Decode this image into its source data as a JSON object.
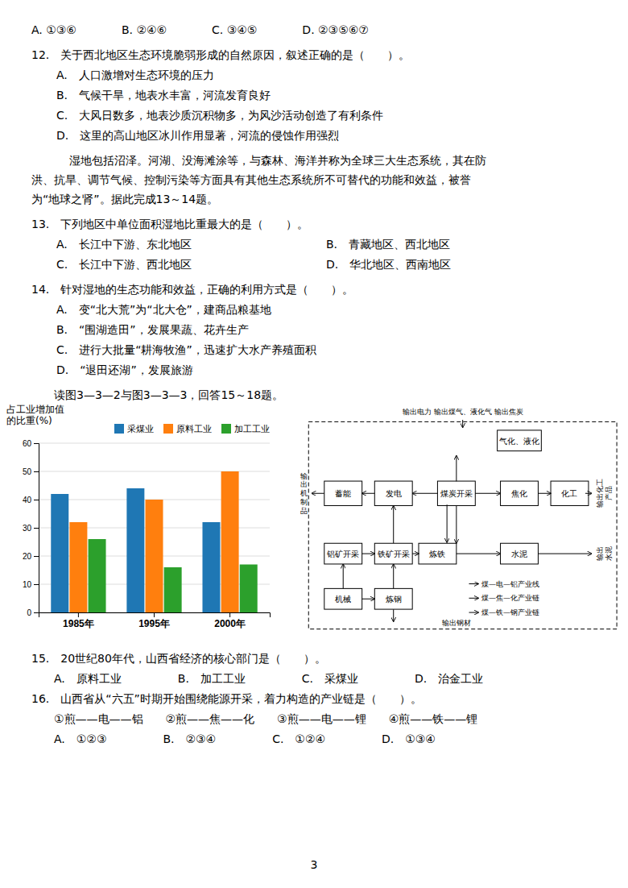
{
  "chart_data": {
    "type": "bar",
    "y_label": "占工业增加值\n的比重(%)",
    "categories": [
      "1985年",
      "1995年",
      "2000年"
    ],
    "series": [
      {
        "name": "采煤业",
        "values": [
          42,
          44,
          32
        ]
      },
      {
        "name": "原料工业",
        "values": [
          32,
          40,
          50
        ]
      },
      {
        "name": "加工工业",
        "values": [
          26,
          16,
          17
        ]
      }
    ],
    "ylim": [
      0,
      60
    ],
    "yticks": [
      0,
      10,
      20,
      30,
      40,
      50,
      60
    ],
    "grid": true,
    "legend": "upper right"
  },
  "background_color": "#ffffff",
  "page_number": "3",
  "text_content": [
    {
      "type": "answer_line",
      "text": "A. ①③⑥　　　　B. ②④⑥　　　　C. ③④⑤　　　　D. ②③⑤⑥⑦"
    },
    {
      "type": "question",
      "text": "12.　关于西北地区生态环境脆弱形成的自然原因，叙述正确的是（　　）。"
    },
    {
      "type": "option",
      "text": "A.　人口激增对生态环境的压力"
    },
    {
      "type": "option",
      "text": "B.　气候干旱，地表水丰富，河流发育良好"
    },
    {
      "type": "option",
      "text": "C.　大风日数多，地表沙质沉积物多，为风沙活动创造了有利条件"
    },
    {
      "type": "option",
      "text": "D.　这里的高山地区冰川作用显著，河流的侵蚀作用强烈"
    },
    {
      "type": "paragraph",
      "indent": true,
      "text": "湿地包括沼泽。河湖、没海滩涂等，与森林、海洋并称为全球三大生态系统，其在防"
    },
    {
      "type": "paragraph",
      "indent": false,
      "text": "洪、抗旱、调节气候、控制污染等方面具有其他生态系统所不可替代的功能和效益，被誉"
    },
    {
      "type": "paragraph",
      "indent": false,
      "text": "为“地球之肾”。据此完成13～14题。"
    },
    {
      "type": "question",
      "text": "13.　下列地区中单位面积湿地比重最大的是（　　）。"
    },
    {
      "type": "option2col",
      "col1": "A.　长江中下游、东北地区",
      "col2": "B.　青藏地区、西北地区"
    },
    {
      "type": "option2col",
      "col1": "C.　长江中下游、西北地区",
      "col2": "D.　华北地区、西南地区"
    },
    {
      "type": "question",
      "text": "14.　针对湿地的生态功能和效益，正确的利用方式是（　　）。"
    },
    {
      "type": "option",
      "text": "A.　变“北大荒”为“北大仓”，建商品粮基地"
    },
    {
      "type": "option",
      "text": "B.　“围湖造田”，发展果蔬、花卉生产"
    },
    {
      "type": "option",
      "text": "C.　进行大批量“耕海牧渔”，迅速扩大水产养殖面积"
    },
    {
      "type": "option",
      "text": "D.　“退田还湖”，发展旅游"
    },
    {
      "type": "instruction",
      "text": "　　读图3—3—2与图3—3—3，回答15～18题。"
    }
  ],
  "flow_diagram": {
    "top_label": "输出电力 输出煤气、液化气 输出焦炭",
    "boxes": [
      "蓄能",
      "发电",
      "煤炭开采",
      "焦化",
      "化工",
      "气化、液化",
      "铝矿开采",
      "铁矿开采",
      "炼铁",
      "水泥",
      "机械",
      "炼钢"
    ],
    "side_labels": [
      "输出化工\n产品",
      "输出\n水泥",
      "输\n出\n机\n制\n品"
    ],
    "chain_labels": [
      "煤—电—铝产业线",
      "煤—焦—化产业链",
      "煤—铁—钢产业链"
    ],
    "bottom_label": "输出钢材"
  },
  "questions_bottom": [
    {
      "text": "15.　20世纪80年代，山西省经济的核心部门是（　　）。"
    },
    {
      "text": "　　A.　原料工业　　　　　B.　加工工业　　　　　C.　采煤业　　　　　D.　治金工业"
    },
    {
      "text": "16.　山西省从“六五”时期开始围绕能源开采，着力构造的产业链是（　　）。"
    },
    {
      "text": "　　①煎——电——铝　　②煎——焦——化　　③煎——电——锂　　④煎——铁——锂"
    },
    {
      "text": "　　A.　①②③　　　　　B.　②③④　　　　　C.　①②④　　　　　D.　①③④"
    }
  ]
}
